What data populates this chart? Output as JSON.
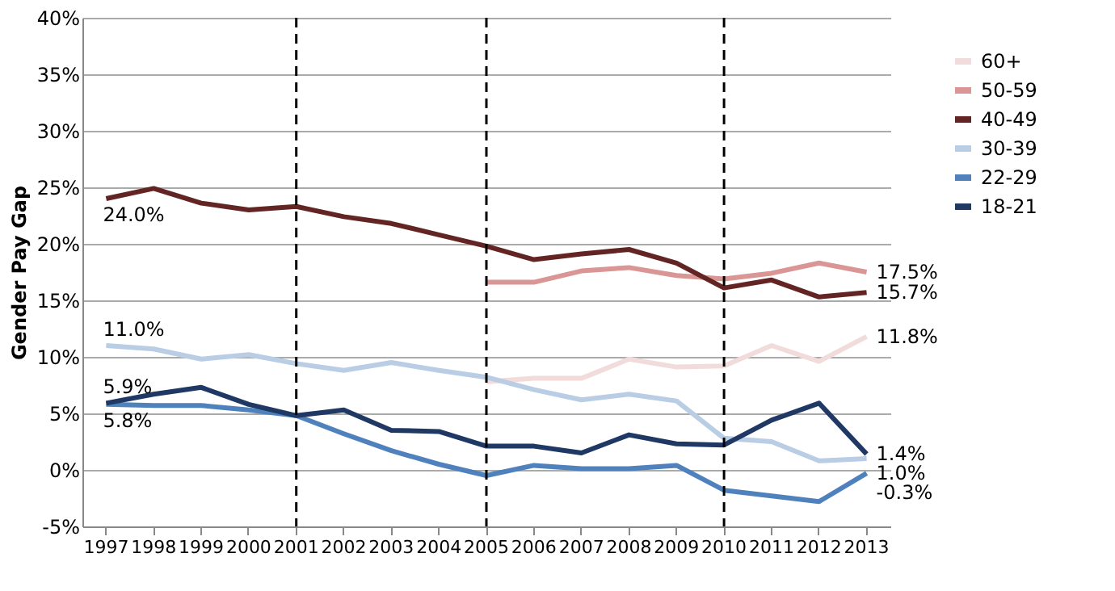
{
  "chart_data": {
    "type": "line",
    "ylabel": "Gender Pay Gap",
    "categories": [
      "1997",
      "1998",
      "1999",
      "2000",
      "2001",
      "2002",
      "2003",
      "2004",
      "2005",
      "2006",
      "2007",
      "2008",
      "2009",
      "2010",
      "2011",
      "2012",
      "2013"
    ],
    "ylim": [
      -5,
      40
    ],
    "yticks": [
      {
        "value": -5,
        "label": "-5%"
      },
      {
        "value": 0,
        "label": "0%"
      },
      {
        "value": 5,
        "label": "5%"
      },
      {
        "value": 10,
        "label": "10%"
      },
      {
        "value": 15,
        "label": "15%"
      },
      {
        "value": 20,
        "label": "20%"
      },
      {
        "value": 25,
        "label": "25%"
      },
      {
        "value": 30,
        "label": "30%"
      },
      {
        "value": 35,
        "label": "35%"
      },
      {
        "value": 40,
        "label": "40%"
      }
    ],
    "grid": "y",
    "legend": "right",
    "marker": "none",
    "line_style": "solid",
    "ref_lines": [
      {
        "axis": "x",
        "value": "2001",
        "color": "#000000",
        "line_style": "dashed"
      },
      {
        "axis": "x",
        "value": "2005",
        "color": "#000000",
        "line_style": "dashed"
      },
      {
        "axis": "x",
        "value": "2010",
        "color": "#000000",
        "line_style": "dashed"
      }
    ],
    "series": [
      {
        "name": "60+",
        "color": "#f2dcdb",
        "values": [
          null,
          null,
          null,
          null,
          null,
          null,
          null,
          null,
          7.8,
          8.1,
          8.1,
          9.8,
          9.1,
          9.2,
          11.0,
          9.6,
          11.8
        ],
        "value_labels": [
          null,
          null,
          null,
          null,
          null,
          null,
          null,
          null,
          null,
          null,
          null,
          null,
          null,
          null,
          null,
          null,
          "11.8%"
        ]
      },
      {
        "name": "50-59",
        "color": "#d99694",
        "values": [
          null,
          null,
          null,
          null,
          null,
          null,
          null,
          null,
          16.6,
          16.6,
          17.6,
          17.9,
          17.2,
          16.9,
          17.4,
          18.3,
          17.5
        ],
        "value_labels": [
          null,
          null,
          null,
          null,
          null,
          null,
          null,
          null,
          null,
          null,
          null,
          null,
          null,
          null,
          null,
          null,
          "17.5%"
        ]
      },
      {
        "name": "40-49",
        "color": "#632523",
        "values": [
          24.0,
          24.9,
          23.6,
          23.0,
          23.3,
          22.4,
          21.8,
          20.8,
          19.8,
          18.6,
          19.1,
          19.5,
          18.3,
          16.1,
          16.8,
          15.3,
          15.7
        ],
        "value_labels": [
          "24.0%",
          null,
          null,
          null,
          null,
          null,
          null,
          null,
          null,
          null,
          null,
          null,
          null,
          null,
          null,
          null,
          "15.7%"
        ]
      },
      {
        "name": "30-39",
        "color": "#b9cde5",
        "values": [
          11.0,
          10.7,
          9.8,
          10.2,
          9.4,
          8.8,
          9.5,
          8.8,
          8.2,
          7.1,
          6.2,
          6.7,
          6.1,
          2.8,
          2.5,
          0.8,
          1.0
        ],
        "value_labels": [
          "11.0%",
          null,
          null,
          null,
          null,
          null,
          null,
          null,
          null,
          null,
          null,
          null,
          null,
          null,
          null,
          null,
          "1.0%"
        ]
      },
      {
        "name": "22-29",
        "color": "#4f81bd",
        "values": [
          5.8,
          5.7,
          5.7,
          5.3,
          4.8,
          3.2,
          1.7,
          0.5,
          -0.5,
          0.4,
          0.1,
          0.1,
          0.4,
          -1.8,
          -2.3,
          -2.8,
          -0.3
        ],
        "value_labels": [
          "5.8%",
          null,
          null,
          null,
          null,
          null,
          null,
          null,
          null,
          null,
          null,
          null,
          null,
          null,
          null,
          null,
          "-0.3%"
        ]
      },
      {
        "name": "18-21",
        "color": "#1f3864",
        "values": [
          5.9,
          6.7,
          7.3,
          5.8,
          4.8,
          5.3,
          3.5,
          3.4,
          2.1,
          2.1,
          1.5,
          3.1,
          2.3,
          2.2,
          4.4,
          5.9,
          1.4
        ],
        "value_labels": [
          "5.9%",
          null,
          null,
          null,
          null,
          null,
          null,
          null,
          null,
          null,
          null,
          null,
          null,
          null,
          null,
          null,
          "1.4%"
        ]
      }
    ]
  }
}
